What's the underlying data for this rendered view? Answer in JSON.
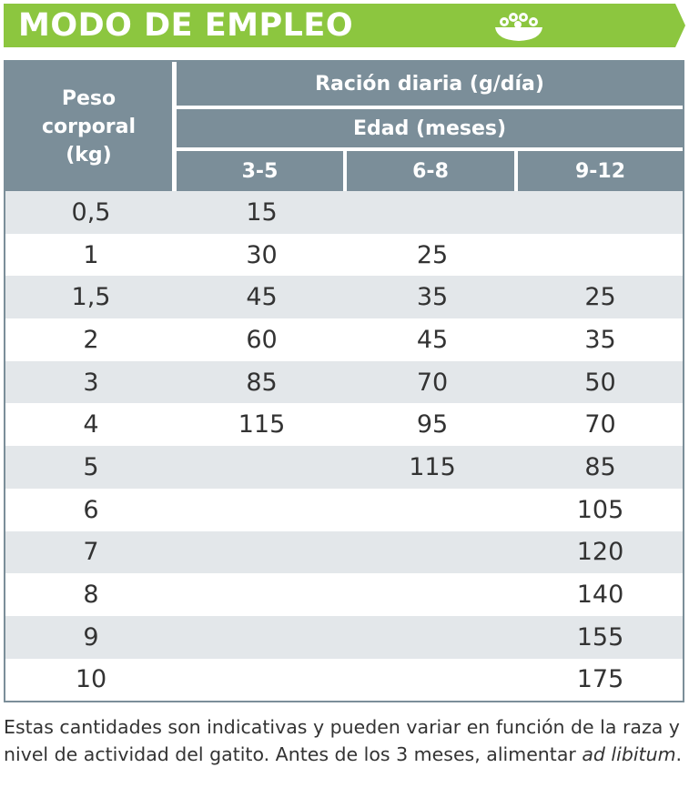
{
  "banner": {
    "title": "MODO DE EMPLEO",
    "icon": "food-bowl-icon",
    "color": "#8cc63f"
  },
  "table": {
    "header_color": "#7b8e99",
    "stripe_color": "#e3e7ea",
    "weight_header": [
      "Peso",
      "corporal",
      "(kg)"
    ],
    "ration_header": "Ración diaria (g/día)",
    "age_header": "Edad (meses)",
    "age_columns": [
      "3-5",
      "6-8",
      "9-12"
    ],
    "rows": [
      {
        "weight": "0,5",
        "values": [
          "15",
          "",
          ""
        ]
      },
      {
        "weight": "1",
        "values": [
          "30",
          "25",
          ""
        ]
      },
      {
        "weight": "1,5",
        "values": [
          "45",
          "35",
          "25"
        ]
      },
      {
        "weight": "2",
        "values": [
          "60",
          "45",
          "35"
        ]
      },
      {
        "weight": "3",
        "values": [
          "85",
          "70",
          "50"
        ]
      },
      {
        "weight": "4",
        "values": [
          "115",
          "95",
          "70"
        ]
      },
      {
        "weight": "5",
        "values": [
          "",
          "115",
          "85"
        ]
      },
      {
        "weight": "6",
        "values": [
          "",
          "",
          "105"
        ]
      },
      {
        "weight": "7",
        "values": [
          "",
          "",
          "120"
        ]
      },
      {
        "weight": "8",
        "values": [
          "",
          "",
          "140"
        ]
      },
      {
        "weight": "9",
        "values": [
          "",
          "",
          "155"
        ]
      },
      {
        "weight": "10",
        "values": [
          "",
          "",
          "175"
        ]
      }
    ]
  },
  "footnote": {
    "text": "Estas cantidades son indicativas y pueden variar en función de la raza y nivel de actividad del gatito. Antes de los 3 meses, alimentar ",
    "italic": "ad libitum",
    "end": "."
  }
}
